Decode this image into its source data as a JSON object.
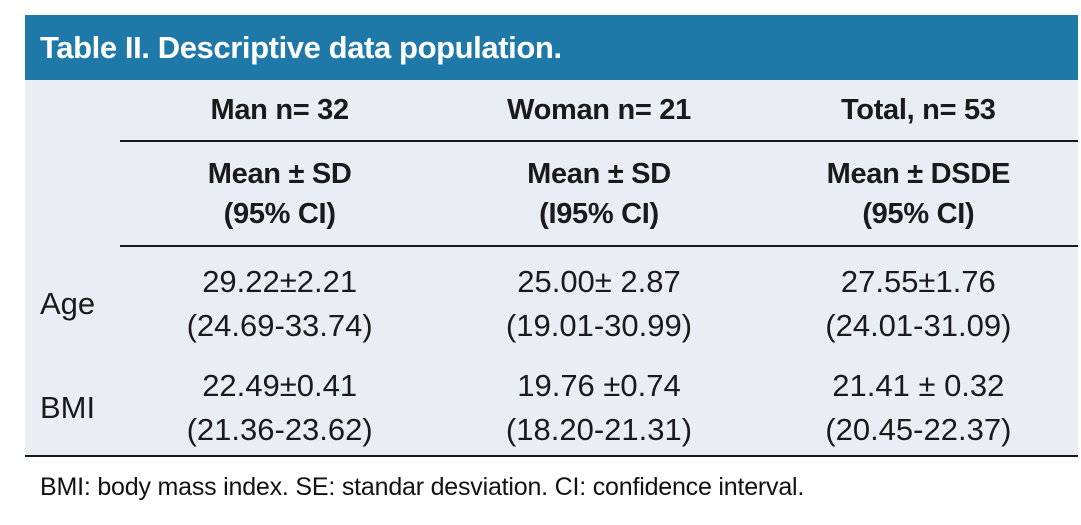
{
  "title": "Table II. Descriptive data population.",
  "colors": {
    "header_bg": "#1e79a9",
    "panel_bg": "#e9edf4",
    "title_color": "#ffffff",
    "text_color": "#1a1a1a"
  },
  "table": {
    "columns": [
      {
        "group": "Man n= 32",
        "sub_line1": "Mean ± SD",
        "sub_line2": "(95% CI)"
      },
      {
        "group": "Woman n= 21",
        "sub_line1": "Mean ± SD",
        "sub_line2": "(I95% CI)"
      },
      {
        "group": "Total, n= 53",
        "sub_line1": "Mean ± DSDE",
        "sub_line2": "(95% CI)"
      }
    ],
    "rows": [
      {
        "label": "Age",
        "cells": [
          {
            "value": "29.22±2.21",
            "ci": "(24.69-33.74)"
          },
          {
            "value": "25.00± 2.87",
            "ci": "(19.01-30.99)"
          },
          {
            "value": "27.55±1.76",
            "ci": "(24.01-31.09)"
          }
        ]
      },
      {
        "label": "BMI",
        "cells": [
          {
            "value": "22.49±0.41",
            "ci": "(21.36-23.62)"
          },
          {
            "value": "19.76 ±0.74",
            "ci": "(18.20-21.31)"
          },
          {
            "value": "21.41 ± 0.32",
            "ci": "(20.45-22.37)"
          }
        ]
      }
    ]
  },
  "footnote": "BMI: body mass index. SE: standar desviation. CI: confidence interval."
}
